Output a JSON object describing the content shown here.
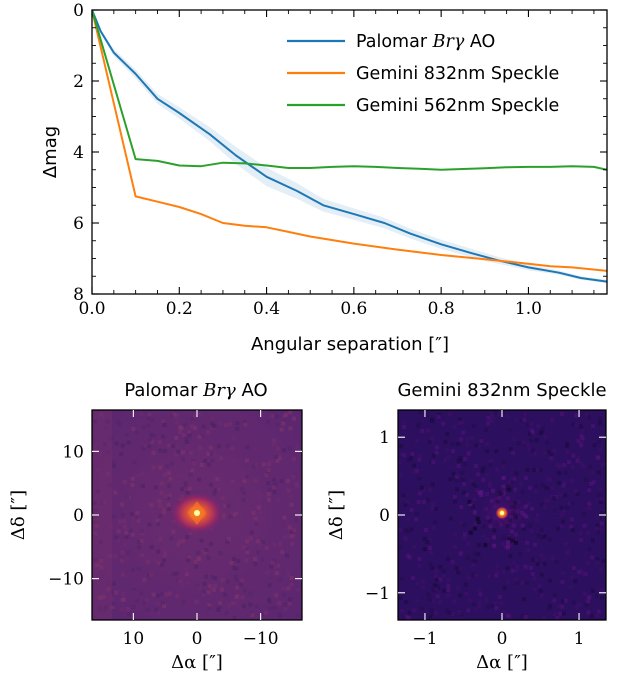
{
  "chart_data": [
    {
      "type": "line",
      "xlabel": "Angular separation [″]",
      "ylabel": "Δmag",
      "xlim": [
        0,
        1.18
      ],
      "ylim": [
        8,
        0
      ],
      "y_inverted": true,
      "xticks": [
        0.0,
        0.2,
        0.4,
        0.6,
        0.8,
        1.0
      ],
      "xtick_labels": [
        "0.0",
        "0.2",
        "0.4",
        "0.6",
        "0.8",
        "1.0"
      ],
      "yticks": [
        0,
        2,
        4,
        6,
        8
      ],
      "ytick_labels": [
        "0",
        "2",
        "4",
        "6",
        "8"
      ],
      "legend_position": "top-right",
      "series": [
        {
          "name": "Palomar Brγ AO",
          "name_parts": [
            "Palomar ",
            "Brγ",
            " AO"
          ],
          "color": "#1f77b4",
          "x": [
            0.0,
            0.02,
            0.05,
            0.1,
            0.15,
            0.2,
            0.27,
            0.33,
            0.4,
            0.47,
            0.53,
            0.6,
            0.67,
            0.73,
            0.8,
            0.87,
            0.93,
            1.0,
            1.07,
            1.12,
            1.18
          ],
          "y": [
            0.0,
            0.6,
            1.2,
            1.8,
            2.5,
            2.9,
            3.5,
            4.1,
            4.7,
            5.1,
            5.5,
            5.75,
            6.0,
            6.3,
            6.6,
            6.85,
            7.05,
            7.25,
            7.4,
            7.55,
            7.65
          ],
          "band_halfwidth": [
            0.0,
            0.05,
            0.1,
            0.12,
            0.14,
            0.16,
            0.2,
            0.24,
            0.26,
            0.22,
            0.18,
            0.16,
            0.15,
            0.14,
            0.13,
            0.12,
            0.1,
            0.08,
            0.06,
            0.05,
            0.05
          ]
        },
        {
          "name": "Gemini 832nm Speckle",
          "color": "#ff7f0e",
          "x": [
            0.0,
            0.1,
            0.15,
            0.2,
            0.25,
            0.3,
            0.35,
            0.4,
            0.45,
            0.5,
            0.6,
            0.7,
            0.8,
            0.9,
            1.0,
            1.05,
            1.1,
            1.18
          ],
          "y": [
            0.0,
            5.25,
            5.4,
            5.55,
            5.75,
            6.0,
            6.08,
            6.12,
            6.25,
            6.38,
            6.58,
            6.75,
            6.9,
            7.02,
            7.15,
            7.22,
            7.25,
            7.35
          ]
        },
        {
          "name": "Gemini 562nm Speckle",
          "color": "#2ca02c",
          "x": [
            0.0,
            0.1,
            0.15,
            0.2,
            0.25,
            0.3,
            0.35,
            0.4,
            0.45,
            0.5,
            0.55,
            0.6,
            0.65,
            0.7,
            0.75,
            0.8,
            0.85,
            0.9,
            0.95,
            1.0,
            1.05,
            1.1,
            1.15,
            1.18
          ],
          "y": [
            0.0,
            4.2,
            4.25,
            4.38,
            4.4,
            4.3,
            4.32,
            4.38,
            4.45,
            4.45,
            4.42,
            4.4,
            4.42,
            4.45,
            4.47,
            4.5,
            4.48,
            4.46,
            4.43,
            4.42,
            4.42,
            4.4,
            4.42,
            4.5
          ]
        }
      ]
    },
    {
      "type": "heatmap",
      "title": "Palomar Brγ AO",
      "title_parts": [
        "Palomar ",
        "Brγ",
        " AO"
      ],
      "xlabel": "Δα [″]",
      "ylabel": "Δδ [″]",
      "xlim": [
        16.5,
        -16.5
      ],
      "ylim": [
        -16.5,
        16.5
      ],
      "x_inverted": true,
      "xticks": [
        10,
        0,
        -10
      ],
      "xtick_labels": [
        "10",
        "0",
        "−10"
      ],
      "yticks": [
        10,
        0,
        -10
      ],
      "ytick_labels": [
        "10",
        "0",
        "−10"
      ],
      "colormap": "inferno",
      "source_peak": [
        0,
        0
      ]
    },
    {
      "type": "heatmap",
      "title": "Gemini 832nm Speckle",
      "xlabel": "Δα [″]",
      "ylabel": "Δδ [″]",
      "xlim": [
        -1.35,
        1.35
      ],
      "ylim": [
        -1.35,
        1.35
      ],
      "xticks": [
        -1,
        0,
        1
      ],
      "xtick_labels": [
        "−1",
        "0",
        "1"
      ],
      "yticks": [
        1,
        0,
        -1
      ],
      "ytick_labels": [
        "1",
        "0",
        "−1"
      ],
      "colormap": "inferno",
      "source_peak": [
        0,
        0
      ]
    }
  ]
}
